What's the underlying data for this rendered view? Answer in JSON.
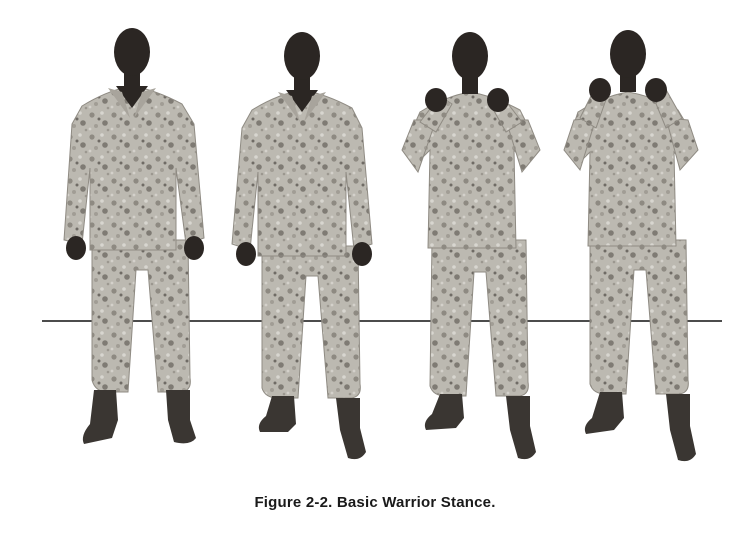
{
  "figure": {
    "caption": "Figure 2-2. Basic Warrior Stance.",
    "figures": [
      {
        "id": "stance-1",
        "pose": "arms-down"
      },
      {
        "id": "stance-2",
        "pose": "arms-down"
      },
      {
        "id": "stance-3",
        "pose": "fists-up"
      },
      {
        "id": "stance-4",
        "pose": "fists-up-high"
      }
    ],
    "colors": {
      "uniform": "#b9b6ae",
      "uniform_dark": "#8f8b83",
      "skin": "#2b2623",
      "boots": "#3a3632",
      "guide_line": "#111111"
    }
  }
}
